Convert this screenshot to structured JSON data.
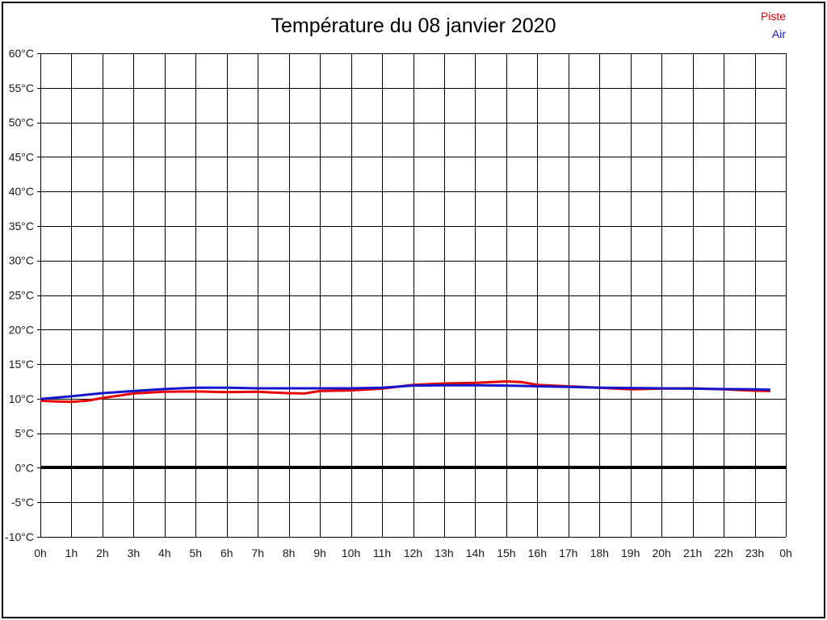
{
  "title": "Température du 08 janvier 2020",
  "legend": {
    "items": [
      {
        "label": "Piste",
        "color": "#e60000"
      },
      {
        "label": "Air",
        "color": "#1515cc"
      }
    ]
  },
  "chart_data": {
    "type": "line",
    "title": "Température du 08 janvier 2020",
    "xlabel": "",
    "ylabel": "",
    "xlim": [
      0,
      24
    ],
    "ylim": [
      -10,
      60
    ],
    "y_step": 5,
    "x_step": 1,
    "grid": true,
    "grid_color": "#000000",
    "legend_position": "top-right",
    "x_tick_labels": [
      "0h",
      "1h",
      "2h",
      "3h",
      "4h",
      "5h",
      "6h",
      "7h",
      "8h",
      "9h",
      "10h",
      "11h",
      "12h",
      "13h",
      "14h",
      "15h",
      "16h",
      "17h",
      "18h",
      "19h",
      "20h",
      "21h",
      "22h",
      "23h",
      "0h"
    ],
    "y_tick_labels": [
      "60°C",
      "55°C",
      "50°C",
      "45°C",
      "40°C",
      "35°C",
      "30°C",
      "25°C",
      "20°C",
      "15°C",
      "10°C",
      "5°C",
      "0°C",
      "-5°C",
      "-10°C"
    ],
    "zero_line": {
      "value": 0,
      "color": "#000000",
      "width": 4
    },
    "series": [
      {
        "name": "Piste",
        "color": "#e60000",
        "x": [
          0,
          0.5,
          1,
          1.5,
          2,
          3,
          4,
          5,
          6,
          7,
          7.5,
          8,
          8.5,
          9,
          10,
          11,
          12,
          13,
          14,
          15,
          15.5,
          16,
          17,
          18,
          19,
          20,
          21,
          22,
          23,
          23.5
        ],
        "values": [
          9.7,
          9.6,
          9.55,
          9.7,
          10.1,
          10.75,
          11.0,
          11.05,
          10.95,
          11.0,
          10.9,
          10.8,
          10.75,
          11.1,
          11.2,
          11.45,
          12.0,
          12.2,
          12.3,
          12.5,
          12.4,
          12.0,
          11.8,
          11.6,
          11.35,
          11.45,
          11.5,
          11.35,
          11.15,
          11.1
        ]
      },
      {
        "name": "Air",
        "color": "#1515cc",
        "x": [
          0,
          1,
          2,
          3,
          4,
          5,
          6,
          7,
          8,
          9,
          10,
          11,
          12,
          13,
          14,
          15,
          16,
          17,
          18,
          19,
          20,
          21,
          22,
          23,
          23.5
        ],
        "values": [
          9.95,
          10.35,
          10.8,
          11.1,
          11.4,
          11.6,
          11.6,
          11.5,
          11.5,
          11.5,
          11.5,
          11.6,
          11.9,
          11.95,
          11.95,
          11.9,
          11.8,
          11.7,
          11.6,
          11.55,
          11.5,
          11.45,
          11.4,
          11.35,
          11.3
        ]
      }
    ]
  }
}
